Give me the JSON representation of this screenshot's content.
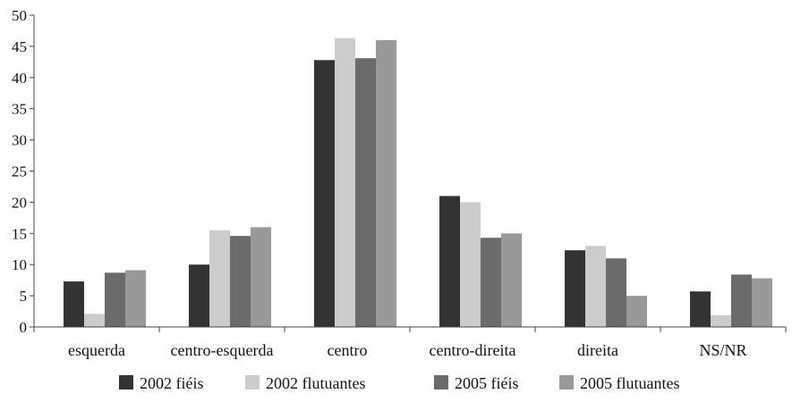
{
  "chart_data": {
    "type": "bar",
    "title": "",
    "xlabel": "",
    "ylabel": "",
    "ylim": [
      0,
      50
    ],
    "yticks": [
      0,
      5,
      10,
      15,
      20,
      25,
      30,
      35,
      40,
      45,
      50
    ],
    "grid": false,
    "legend_position": "bottom",
    "categories": [
      "esquerda",
      "centro-esquerda",
      "centro",
      "centro-direita",
      "direita",
      "NS/NR"
    ],
    "series": [
      {
        "name": "2002 fiéis",
        "color": "#333333",
        "values": [
          7.3,
          10.0,
          42.8,
          21.0,
          12.3,
          5.7
        ]
      },
      {
        "name": "2002 flutuantes",
        "color": "#cccccc",
        "values": [
          2.1,
          15.5,
          46.3,
          20.0,
          13.0,
          1.9
        ]
      },
      {
        "name": "2005 fiéis",
        "color": "#6b6b6b",
        "values": [
          8.7,
          14.6,
          43.1,
          14.3,
          11.0,
          8.4
        ]
      },
      {
        "name": "2005 flutuantes",
        "color": "#999999",
        "values": [
          9.1,
          16.0,
          46.0,
          15.0,
          5.0,
          7.8
        ]
      }
    ]
  }
}
